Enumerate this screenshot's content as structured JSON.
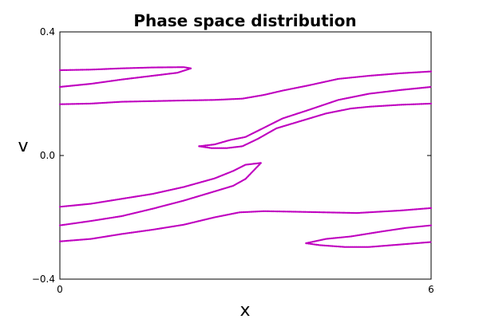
{
  "chart_data": {
    "type": "scatter",
    "title": "Phase space distribution",
    "xlabel": "x",
    "ylabel": "v",
    "xlim": [
      0,
      6
    ],
    "ylim": [
      -0.4,
      0.4
    ],
    "xticks": [
      {
        "value": 0,
        "label": "0"
      },
      {
        "value": 6,
        "label": "6"
      }
    ],
    "yticks": [
      {
        "value": 0.4,
        "label": "0.4"
      },
      {
        "value": 0.0,
        "label": "0.0"
      },
      {
        "value": -0.4,
        "label": "−0.4"
      }
    ],
    "grid": false,
    "color": "#bf00bf",
    "series": [
      {
        "name": "upper-band-edge-a",
        "points": [
          [
            0,
            0.276
          ],
          [
            0.5,
            0.278
          ],
          [
            1.0,
            0.282
          ],
          [
            1.5,
            0.285
          ],
          [
            2.0,
            0.286
          ],
          [
            2.12,
            0.282
          ]
        ]
      },
      {
        "name": "upper-band-edge-b",
        "points": [
          [
            0,
            0.222
          ],
          [
            0.5,
            0.232
          ],
          [
            1.0,
            0.246
          ],
          [
            1.5,
            0.258
          ],
          [
            1.9,
            0.268
          ],
          [
            2.12,
            0.282
          ]
        ]
      },
      {
        "name": "upper-band-edge-c",
        "points": [
          [
            0,
            0.166
          ],
          [
            0.5,
            0.168
          ],
          [
            1.0,
            0.174
          ],
          [
            1.5,
            0.176
          ],
          [
            2.0,
            0.178
          ],
          [
            2.5,
            0.18
          ],
          [
            2.95,
            0.184
          ],
          [
            3.3,
            0.196
          ],
          [
            3.6,
            0.21
          ],
          [
            4.0,
            0.226
          ],
          [
            4.5,
            0.248
          ],
          [
            5.0,
            0.258
          ],
          [
            5.5,
            0.266
          ],
          [
            6.0,
            0.272
          ]
        ]
      },
      {
        "name": "middle-band-edge-d",
        "points": [
          [
            2.25,
            0.03
          ],
          [
            2.5,
            0.036
          ],
          [
            2.75,
            0.05
          ],
          [
            3.0,
            0.06
          ],
          [
            3.3,
            0.09
          ],
          [
            3.6,
            0.12
          ],
          [
            4.0,
            0.146
          ],
          [
            4.5,
            0.18
          ],
          [
            5.0,
            0.2
          ],
          [
            5.5,
            0.212
          ],
          [
            6.0,
            0.222
          ]
        ]
      },
      {
        "name": "middle-band-edge-e",
        "points": [
          [
            2.25,
            0.03
          ],
          [
            2.45,
            0.024
          ],
          [
            2.7,
            0.024
          ],
          [
            2.95,
            0.03
          ],
          [
            3.2,
            0.054
          ],
          [
            3.5,
            0.088
          ],
          [
            3.9,
            0.112
          ],
          [
            4.3,
            0.136
          ],
          [
            4.7,
            0.152
          ],
          [
            5.0,
            0.158
          ],
          [
            5.5,
            0.164
          ],
          [
            6.0,
            0.168
          ]
        ]
      },
      {
        "name": "middle-band-edge-f",
        "points": [
          [
            0,
            -0.166
          ],
          [
            0.5,
            -0.156
          ],
          [
            1.0,
            -0.14
          ],
          [
            1.5,
            -0.124
          ],
          [
            2.0,
            -0.102
          ],
          [
            2.5,
            -0.074
          ],
          [
            2.8,
            -0.05
          ],
          [
            3.0,
            -0.03
          ],
          [
            3.25,
            -0.024
          ]
        ]
      },
      {
        "name": "middle-band-edge-g",
        "points": [
          [
            0,
            -0.226
          ],
          [
            0.5,
            -0.212
          ],
          [
            1.0,
            -0.196
          ],
          [
            1.5,
            -0.172
          ],
          [
            2.0,
            -0.146
          ],
          [
            2.5,
            -0.116
          ],
          [
            2.8,
            -0.098
          ],
          [
            3.0,
            -0.076
          ],
          [
            3.25,
            -0.024
          ]
        ]
      },
      {
        "name": "lower-band-edge-h",
        "points": [
          [
            0,
            -0.278
          ],
          [
            0.5,
            -0.27
          ],
          [
            1.0,
            -0.254
          ],
          [
            1.5,
            -0.24
          ],
          [
            2.0,
            -0.224
          ],
          [
            2.5,
            -0.2
          ],
          [
            2.9,
            -0.184
          ],
          [
            3.3,
            -0.18
          ],
          [
            3.8,
            -0.182
          ],
          [
            4.3,
            -0.184
          ],
          [
            4.8,
            -0.186
          ],
          [
            5.5,
            -0.178
          ],
          [
            6.0,
            -0.17
          ]
        ]
      },
      {
        "name": "lower-band-edge-i",
        "points": [
          [
            3.98,
            -0.284
          ],
          [
            4.3,
            -0.27
          ],
          [
            4.7,
            -0.262
          ],
          [
            5.2,
            -0.246
          ],
          [
            5.6,
            -0.234
          ],
          [
            6.0,
            -0.226
          ]
        ]
      },
      {
        "name": "lower-band-edge-j",
        "points": [
          [
            3.98,
            -0.284
          ],
          [
            4.2,
            -0.29
          ],
          [
            4.6,
            -0.296
          ],
          [
            5.0,
            -0.296
          ],
          [
            5.5,
            -0.288
          ],
          [
            6.0,
            -0.28
          ]
        ]
      }
    ]
  }
}
